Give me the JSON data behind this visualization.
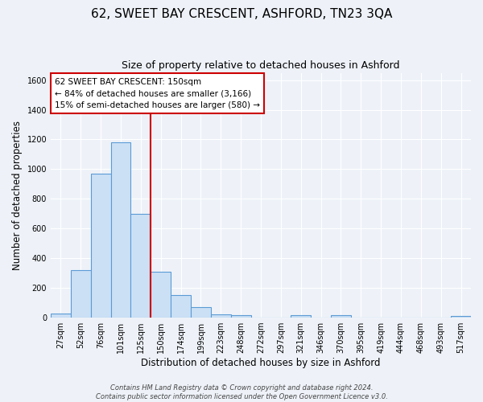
{
  "title": "62, SWEET BAY CRESCENT, ASHFORD, TN23 3QA",
  "subtitle": "Size of property relative to detached houses in Ashford",
  "xlabel": "Distribution of detached houses by size in Ashford",
  "ylabel": "Number of detached properties",
  "footer_lines": [
    "Contains HM Land Registry data © Crown copyright and database right 2024.",
    "Contains public sector information licensed under the Open Government Licence v3.0."
  ],
  "bar_labels": [
    "27sqm",
    "52sqm",
    "76sqm",
    "101sqm",
    "125sqm",
    "150sqm",
    "174sqm",
    "199sqm",
    "223sqm",
    "248sqm",
    "272sqm",
    "297sqm",
    "321sqm",
    "346sqm",
    "370sqm",
    "395sqm",
    "419sqm",
    "444sqm",
    "468sqm",
    "493sqm",
    "517sqm"
  ],
  "bar_values": [
    25,
    320,
    970,
    1180,
    700,
    305,
    150,
    70,
    20,
    15,
    0,
    0,
    15,
    0,
    15,
    0,
    0,
    0,
    0,
    0,
    10
  ],
  "bar_color": "#cce0f5",
  "bar_edge_color": "#5b9bd5",
  "vline_x": 4.5,
  "vline_color": "#cc0000",
  "annotation_title": "62 SWEET BAY CRESCENT: 150sqm",
  "annotation_line1": "← 84% of detached houses are smaller (3,166)",
  "annotation_line2": "15% of semi-detached houses are larger (580) →",
  "annotation_box_color": "#ffffff",
  "annotation_box_edge": "#cc0000",
  "ylim": [
    0,
    1650
  ],
  "yticks": [
    0,
    200,
    400,
    600,
    800,
    1000,
    1200,
    1400,
    1600
  ],
  "bg_color": "#eef2f8",
  "grid_color": "#ffffff",
  "title_fontsize": 11,
  "subtitle_fontsize": 9,
  "axis_label_fontsize": 8.5,
  "tick_fontsize": 7,
  "annotation_fontsize": 7.5,
  "footer_fontsize": 6
}
